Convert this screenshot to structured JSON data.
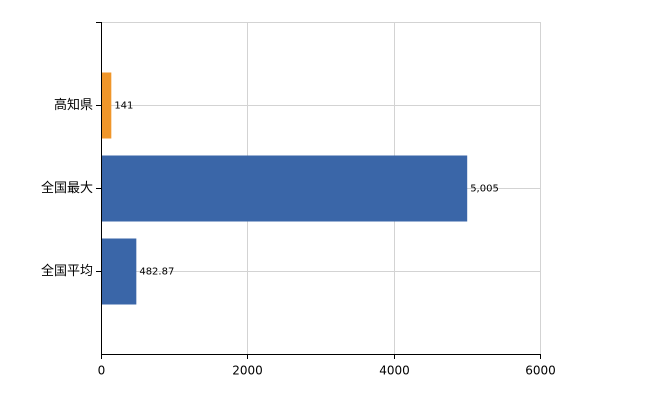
{
  "chart_data": {
    "type": "bar",
    "orientation": "horizontal",
    "categories": [
      "高知県",
      "全国最大",
      "全国平均"
    ],
    "values": [
      141,
      5005,
      482.87
    ],
    "value_labels": [
      "141",
      "5,005",
      "482.87"
    ],
    "colors": [
      "#f0962a",
      "#3a66a8",
      "#3a66a8"
    ],
    "xlim": [
      0,
      6000
    ],
    "xticks": [
      0,
      2000,
      4000,
      6000
    ],
    "grid": true
  }
}
